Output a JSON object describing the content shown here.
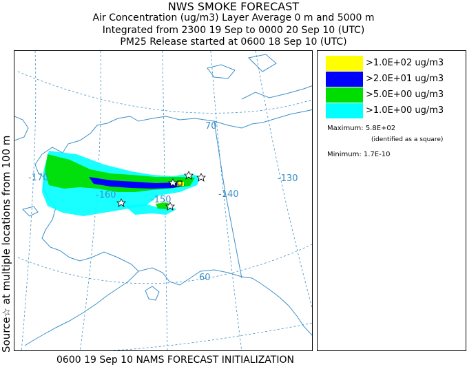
{
  "header": {
    "title": "NWS SMOKE FORECAST",
    "subtitle_1": "Air Concentration (ug/m3) Layer Average    0 m and  5000 m",
    "subtitle_2": "Integrated from 2300 19 Sep to 0000 20 Sep 10 (UTC)",
    "subtitle_3": "PM25 Release started at 0600 18 Sep 10 (UTC)"
  },
  "side_label": "Source☆ at multiple locations  from  100 m",
  "footer": "0600 19 Sep 10 NAMS FORECAST INITIALIZATION",
  "legend": {
    "levels": [
      {
        "label": ">1.0E+02 ug/m3",
        "color": "#ffff00"
      },
      {
        "label": ">2.0E+01 ug/m3",
        "color": "#0000ff"
      },
      {
        "label": ">5.0E+00 ug/m3",
        "color": "#00dd00"
      },
      {
        "label": ">1.0E+00 ug/m3",
        "color": "#00ffff"
      }
    ],
    "maximum": "Maximum: 5.8E+02",
    "maximum_note": "(identified as a square)",
    "minimum": "Minimum: 1.7E-10"
  },
  "map": {
    "grid_labels": {
      "lon_170": "-170",
      "lon_160": "-160",
      "lon_150": "-150",
      "lon_140": "-140",
      "lon_130": "-130",
      "lat_70": "70",
      "lat_60": "60"
    },
    "colors": {
      "coast": "#3a8fc8",
      "grid": "#3a8fc8"
    }
  }
}
